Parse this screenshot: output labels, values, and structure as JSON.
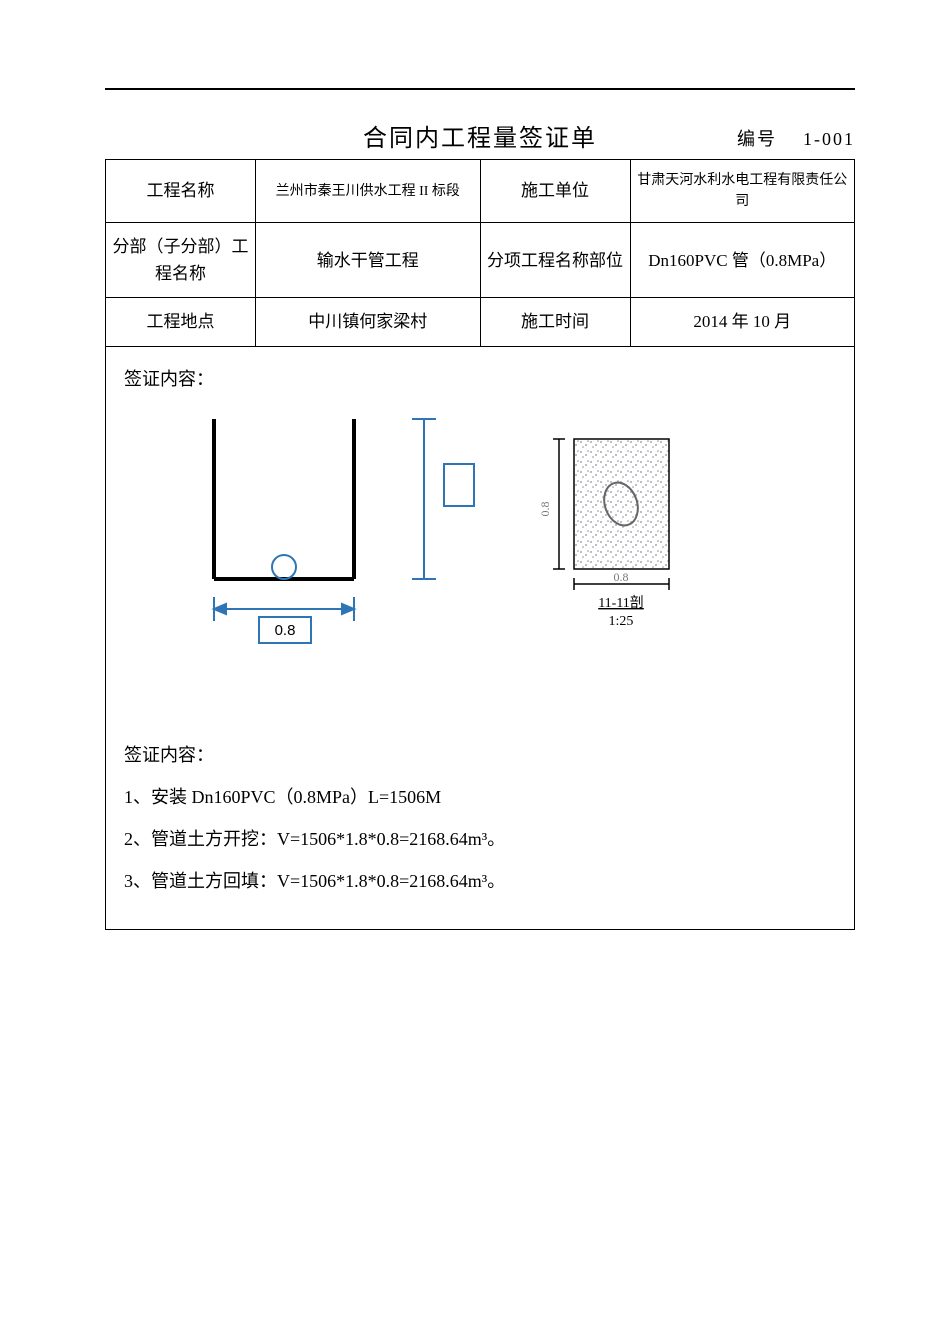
{
  "title": "合同内工程量签证单",
  "doc_number_label": "编号",
  "doc_number_value": "1-001",
  "rows": [
    {
      "l1": "工程名称",
      "v1": "兰州市秦王川供水工程 II 标段",
      "l2": "施工单位",
      "v2": "甘肃天河水利水电工程有限责任公司",
      "v1_small": true,
      "v2_small": true
    },
    {
      "l1": "分部（子分部）工程名称",
      "v1": "输水干管工程",
      "l2": "分项工程名称部位",
      "v2": "Dn160PVC 管（0.8MPa）"
    },
    {
      "l1": "工程地点",
      "v1": "中川镇何家梁村",
      "l2": "施工时间",
      "v2": "2014 年  10  月"
    }
  ],
  "content_heading": "签证内容：",
  "diagram1": {
    "stroke_main": "#000000",
    "stroke_dim": "#2e75b6",
    "trench_width_label": "0.8",
    "circle_r": 12
  },
  "diagram2": {
    "stroke": "#000000",
    "fill_pattern_color": "#9aa0a6",
    "width_label": "0.8",
    "height_label": "0.8",
    "caption_top": "11-11剖",
    "caption_bot": "1:25"
  },
  "calc_heading": "签证内容：",
  "calc_lines": [
    "1、安装 Dn160PVC（0.8MPa）L=1506M",
    "2、管道土方开挖：V=1506*1.8*0.8=2168.64m³。",
    "3、管道土方回填：V=1506*1.8*0.8=2168.64m³。"
  ]
}
